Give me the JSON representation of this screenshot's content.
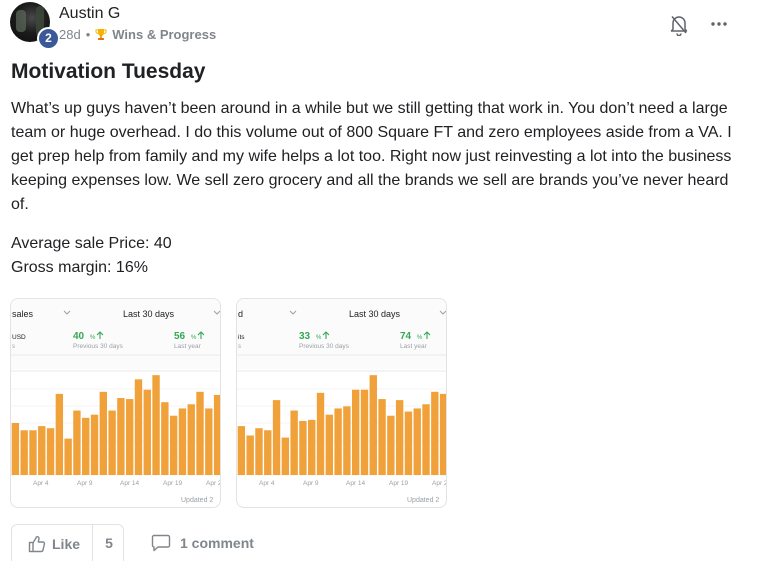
{
  "post": {
    "author": "Austin G",
    "level": "2",
    "age": "28d",
    "separator": "•",
    "category": "Wins & Progress",
    "title": "Motivation Tuesday",
    "body": "What’s up guys haven’t been around in a while but we still getting that work in. You don’t need a large team or huge overhead. I do this volume out of 800 Square FT and zero employees aside from a VA. I get prep help from family and my wife helps a lot too. Right now just reinvesting a lot into the business keeping expenses low. We sell zero grocery and all the brands we sell are brands you’ve never heard of.",
    "stats": [
      "Average sale Price: 40",
      "Gross margin: 16%"
    ]
  },
  "icons": {
    "bell": "bell-off-icon",
    "more": "more-horizontal-icon",
    "trophy": "trophy-icon",
    "like": "thumbs-up-icon",
    "comment": "comment-icon"
  },
  "colors": {
    "bar": "#f0a13a",
    "up": "#34a853",
    "badge": "#3b5998"
  },
  "actions": {
    "like_label": "Like",
    "like_count": "5",
    "comment_label": "1 comment"
  },
  "screenshots": [
    {
      "dropdown": "sales",
      "range": "Last 30 days",
      "metric_unit": "USD",
      "metric_sub": "s",
      "prev_value": "40",
      "prev_label": "Previous 30 days",
      "ly_value": "56",
      "ly_label": "Last year",
      "pct": "%",
      "x_ticks": [
        "Apr 4",
        "Apr 9",
        "Apr 14",
        "Apr 19",
        "Apr 2"
      ],
      "footer": "Updated 2",
      "bar_values": [
        50,
        43,
        43,
        47,
        45,
        78,
        35,
        62,
        55,
        58,
        80,
        62,
        74,
        73,
        92,
        82,
        96,
        70,
        57,
        64,
        68,
        80,
        64,
        77
      ]
    },
    {
      "dropdown": "d",
      "range": "Last 30 days",
      "metric_unit": "its",
      "metric_sub": "s",
      "prev_value": "33",
      "prev_label": "Previous 30 days",
      "ly_value": "74",
      "ly_label": "Last year",
      "pct": "%",
      "x_ticks": [
        "Apr 4",
        "Apr 9",
        "Apr 14",
        "Apr 19",
        "Apr 2"
      ],
      "footer": "Updated 2",
      "bar_values": [
        47,
        38,
        45,
        43,
        72,
        36,
        62,
        52,
        53,
        79,
        58,
        64,
        66,
        82,
        82,
        96,
        73,
        57,
        72,
        61,
        64,
        68,
        80,
        78
      ]
    }
  ]
}
